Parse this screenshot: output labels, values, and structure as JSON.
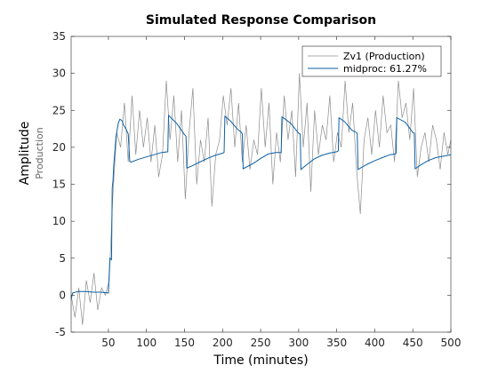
{
  "chart_data": {
    "type": "line",
    "title": "Simulated Response Comparison",
    "xlabel": "Time (minutes)",
    "ylabel": "Amplitude",
    "ylabel_channel": "Production",
    "xlim": [
      1,
      500
    ],
    "ylim": [
      -5,
      35
    ],
    "x_ticks": [
      50,
      100,
      150,
      200,
      250,
      300,
      350,
      400,
      450,
      500
    ],
    "y_ticks": [
      -5,
      0,
      5,
      10,
      15,
      20,
      25,
      30,
      35
    ],
    "grid": false,
    "legend_position": "top-right",
    "series": [
      {
        "name": "Zv1 (Production)",
        "color": "#8c8c8c",
        "x": [
          1,
          6,
          11,
          16,
          21,
          26,
          31,
          36,
          41,
          46,
          51,
          56,
          61,
          66,
          71,
          76,
          81,
          86,
          91,
          96,
          101,
          106,
          111,
          116,
          121,
          126,
          131,
          136,
          141,
          146,
          151,
          156,
          161,
          166,
          171,
          176,
          181,
          186,
          191,
          196,
          201,
          206,
          211,
          216,
          221,
          226,
          231,
          236,
          241,
          246,
          251,
          256,
          261,
          266,
          271,
          276,
          281,
          286,
          291,
          296,
          301,
          306,
          311,
          316,
          321,
          326,
          331,
          336,
          341,
          346,
          351,
          356,
          361,
          366,
          371,
          376,
          381,
          386,
          391,
          396,
          401,
          406,
          411,
          416,
          421,
          426,
          431,
          436,
          441,
          446,
          451,
          456,
          461,
          466,
          471,
          476,
          481,
          486,
          491,
          496,
          500
        ],
        "y": [
          0,
          -3,
          1,
          -4,
          2,
          -1,
          3,
          -2,
          1,
          0,
          2,
          14,
          22,
          20,
          26,
          18,
          27,
          19,
          25,
          20,
          24,
          18,
          23,
          16,
          19,
          29,
          21,
          27,
          18,
          25,
          13,
          22,
          28,
          15,
          21,
          18,
          24,
          12,
          19,
          21,
          27,
          23,
          28,
          20,
          26,
          18,
          23,
          17,
          21,
          19,
          28,
          20,
          26,
          15,
          22,
          18,
          27,
          21,
          25,
          16,
          30,
          20,
          26,
          14,
          25,
          19,
          23,
          21,
          27,
          18,
          22,
          20,
          29,
          22,
          26,
          17,
          11,
          21,
          24,
          19,
          25,
          20,
          27,
          22,
          23,
          18,
          29,
          24,
          26,
          21,
          28,
          16,
          20,
          22,
          18,
          23,
          21,
          17,
          22,
          19,
          21
        ]
      },
      {
        "name": "midproc: 61.27%",
        "color": "#0b5fa5",
        "x": [
          1,
          3,
          10,
          20,
          30,
          40,
          50,
          52,
          54,
          55,
          56,
          57,
          60,
          63,
          65,
          68,
          70,
          73,
          76,
          78,
          79,
          80,
          90,
          100,
          110,
          120,
          128,
          129,
          130,
          140,
          150,
          152,
          153,
          160,
          170,
          180,
          190,
          200,
          202,
          203,
          210,
          220,
          225,
          226,
          227,
          240,
          250,
          260,
          270,
          277,
          278,
          280,
          290,
          300,
          302,
          303,
          310,
          320,
          330,
          340,
          350,
          352,
          353,
          360,
          370,
          376,
          377,
          378,
          390,
          400,
          410,
          420,
          427,
          428,
          429,
          440,
          450,
          452,
          453,
          460,
          470,
          480,
          490,
          500
        ],
        "y": [
          -0.5,
          0.3,
          0.5,
          0.5,
          0.4,
          0.4,
          0.3,
          5.0,
          4.8,
          14.5,
          15.5,
          17.5,
          21.5,
          23.3,
          23.8,
          23.6,
          23.0,
          22.5,
          21.8,
          18.1,
          18.0,
          18.0,
          18.4,
          18.7,
          19.0,
          19.3,
          19.4,
          24.3,
          24.2,
          23.2,
          21.7,
          21.5,
          17.2,
          17.5,
          18.0,
          18.5,
          18.9,
          19.2,
          19.3,
          24.2,
          23.6,
          22.4,
          22.0,
          21.8,
          17.1,
          17.8,
          18.5,
          19.1,
          19.3,
          19.3,
          24.1,
          24.0,
          23.2,
          21.9,
          21.8,
          17.0,
          17.6,
          18.4,
          18.9,
          19.2,
          19.4,
          19.5,
          24.0,
          23.5,
          22.3,
          22.0,
          21.8,
          17.0,
          17.7,
          18.2,
          18.6,
          19.0,
          19.1,
          19.2,
          24.0,
          23.4,
          22.0,
          21.9,
          17.1,
          17.6,
          18.2,
          18.6,
          18.8,
          19.0
        ]
      }
    ]
  }
}
